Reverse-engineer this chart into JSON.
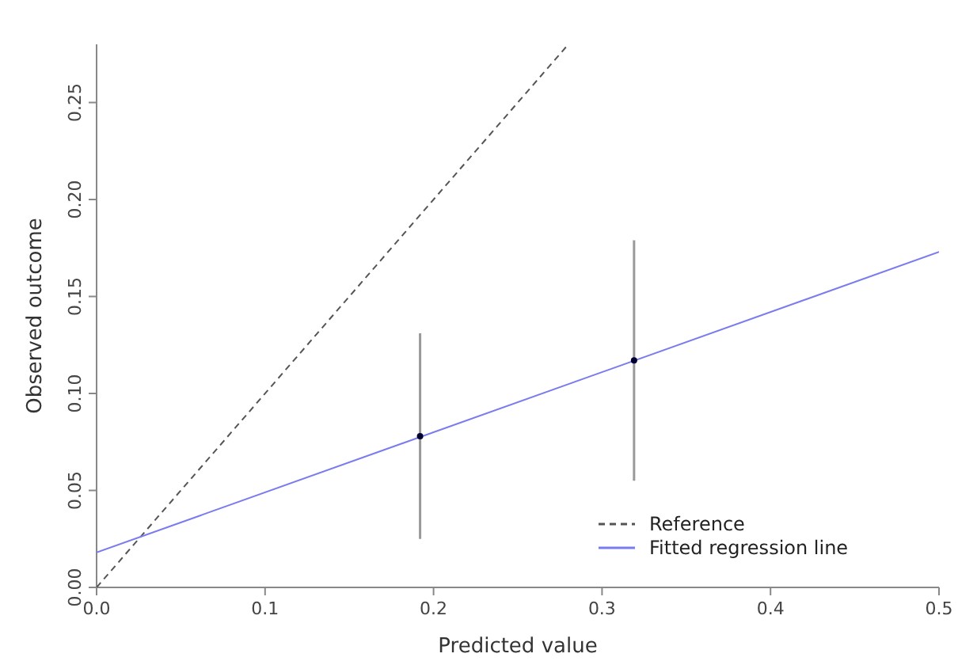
{
  "chart_data": {
    "type": "line",
    "xlabel": "Predicted value",
    "ylabel": "Observed outcome",
    "xlim": [
      0,
      0.5
    ],
    "ylim": [
      0,
      0.28
    ],
    "xticks": [
      {
        "value": 0,
        "label": "0.0"
      },
      0.1,
      0.2,
      0.3,
      0.4,
      0.5
    ],
    "yticks": [
      {
        "value": 0,
        "label": "0.00"
      },
      0.05,
      {
        "value": 0.1,
        "label": "0.10"
      },
      0.15,
      {
        "value": 0.2,
        "label": "0.20"
      },
      0.25
    ],
    "grid": false,
    "legend": "bottom right",
    "series": [
      {
        "name": "Reference",
        "color": "#555555",
        "line_style": "dashed",
        "x": [
          0,
          0.28
        ],
        "values": [
          0,
          0.28
        ]
      },
      {
        "name": "Fitted regression line",
        "color": "#7b7bf0",
        "line_style": "solid",
        "x": [
          0,
          0.5
        ],
        "values": [
          0.018,
          0.173
        ]
      },
      {
        "type": "scatter",
        "color": "#000033",
        "marker": "circle",
        "x": [
          0.192,
          0.319
        ],
        "values": [
          0.078,
          0.117
        ],
        "errors": [
          [
            0.025,
            0.131
          ],
          [
            0.055,
            0.179
          ]
        ]
      }
    ]
  }
}
